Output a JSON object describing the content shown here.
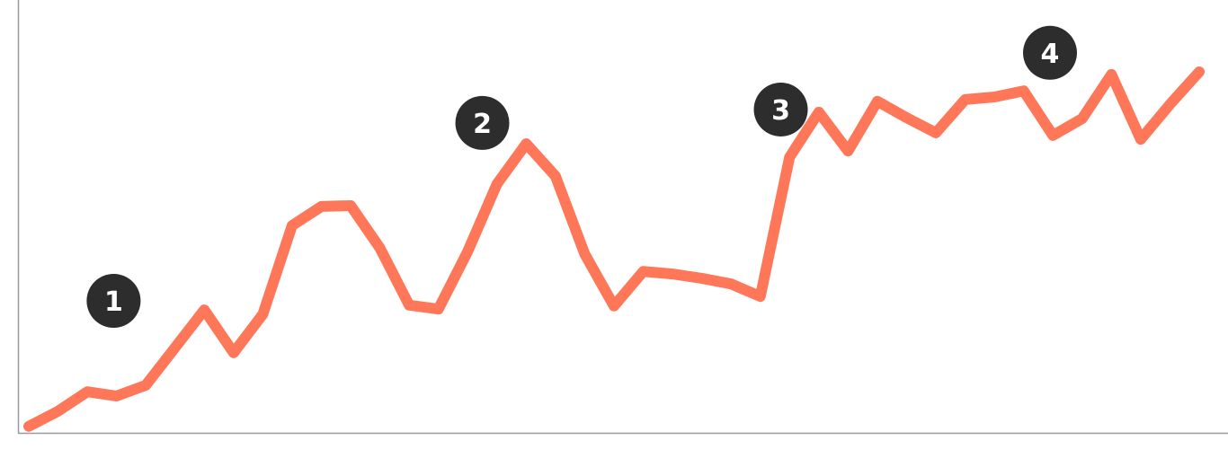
{
  "chart_data": {
    "type": "line",
    "title": "",
    "xlabel": "",
    "ylabel": "",
    "xlim": [
      0,
      40
    ],
    "ylim": [
      0,
      100
    ],
    "grid": false,
    "line_color": "#FF7759",
    "axis_color": "#999999",
    "x": [
      0,
      1,
      2,
      3,
      4,
      5,
      6,
      7,
      8,
      9,
      10,
      11,
      12,
      13,
      14,
      15,
      16,
      17,
      18,
      19,
      20,
      21,
      22,
      23,
      24,
      25,
      26,
      27,
      28,
      29,
      30,
      31,
      32,
      33,
      34,
      35,
      36,
      37,
      38,
      39,
      40
    ],
    "series": [
      {
        "values": [
          1.5,
          5,
          9.5,
          8.5,
          11,
          19.7,
          28.4,
          18.5,
          27.4,
          47.9,
          52.3,
          52.5,
          42.7,
          29.5,
          28.6,
          41.9,
          57.5,
          66.8,
          59.3,
          41.3,
          29.3,
          37.3,
          36.7,
          35.7,
          34.4,
          31.5,
          63.7,
          74.1,
          65.1,
          76.6,
          72.8,
          69.3,
          77,
          77.6,
          79,
          68.7,
          72.6,
          82.8,
          67.8,
          75.9,
          83.4
        ]
      }
    ],
    "annotations": [
      {
        "label": "1",
        "x": 2.9,
        "y": 30.5
      },
      {
        "label": "2",
        "x": 15.5,
        "y": 71.6
      },
      {
        "label": "3",
        "x": 25.7,
        "y": 74.7
      },
      {
        "label": "4",
        "x": 34.9,
        "y": 87.8
      }
    ],
    "annotation_color": "#2D2D2D"
  }
}
